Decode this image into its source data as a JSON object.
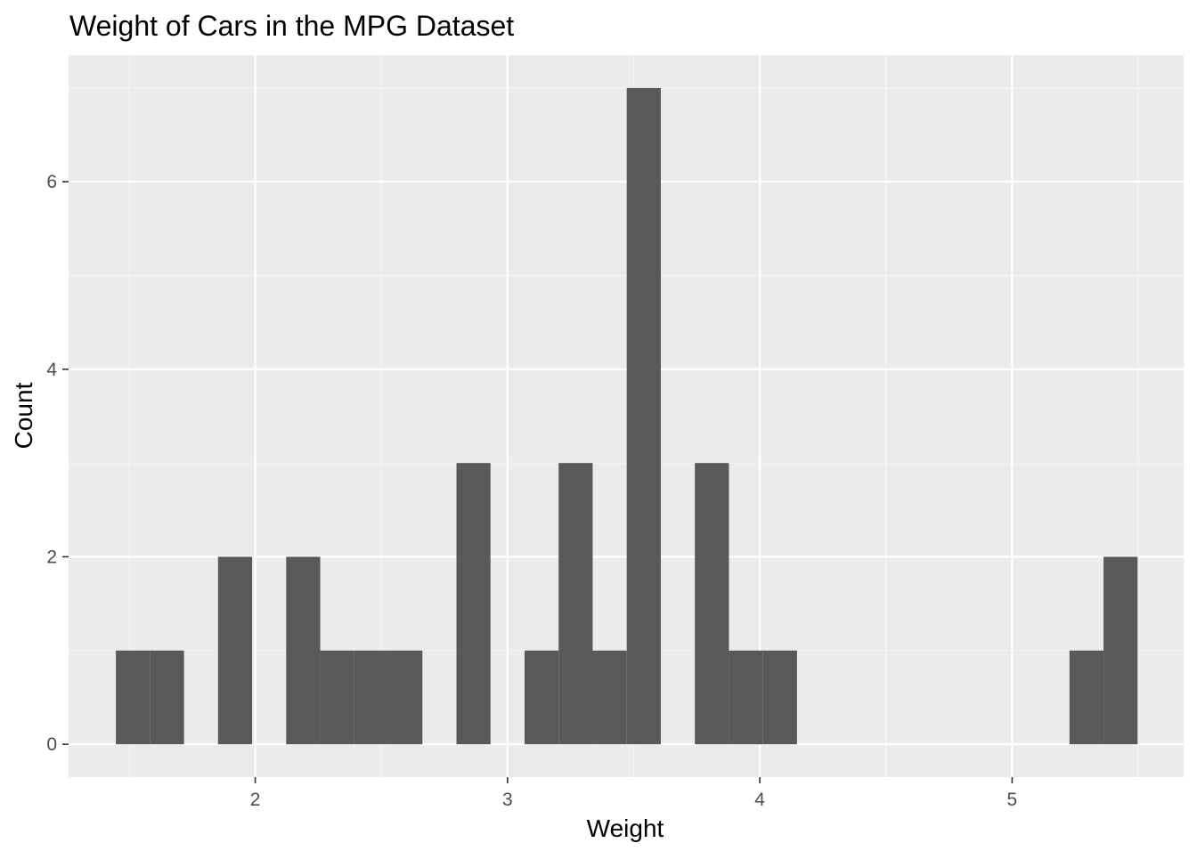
{
  "chart_data": {
    "type": "bar",
    "title": "Weight of Cars in the MPG Dataset",
    "xlabel": "Weight",
    "ylabel": "Count",
    "xlim": [
      1.26,
      5.68
    ],
    "ylim": [
      -0.35,
      7.35
    ],
    "x_ticks": [
      2,
      3,
      4,
      5
    ],
    "y_ticks": [
      0,
      2,
      4,
      6
    ],
    "bin_width": 0.135,
    "bins": [
      {
        "x0": 1.4475,
        "x1": 1.5825,
        "count": 1
      },
      {
        "x0": 1.5825,
        "x1": 1.7175,
        "count": 1
      },
      {
        "x0": 1.7175,
        "x1": 1.8525,
        "count": 0
      },
      {
        "x0": 1.8525,
        "x1": 1.9875,
        "count": 2
      },
      {
        "x0": 1.9875,
        "x1": 2.1225,
        "count": 0
      },
      {
        "x0": 2.1225,
        "x1": 2.2575,
        "count": 2
      },
      {
        "x0": 2.2575,
        "x1": 2.3925,
        "count": 1
      },
      {
        "x0": 2.3925,
        "x1": 2.5275,
        "count": 1
      },
      {
        "x0": 2.5275,
        "x1": 2.6625,
        "count": 1
      },
      {
        "x0": 2.6625,
        "x1": 2.7975,
        "count": 0
      },
      {
        "x0": 2.7975,
        "x1": 2.9325,
        "count": 3
      },
      {
        "x0": 2.9325,
        "x1": 3.0675,
        "count": 0
      },
      {
        "x0": 3.0675,
        "x1": 3.2025,
        "count": 1
      },
      {
        "x0": 3.2025,
        "x1": 3.3375,
        "count": 3
      },
      {
        "x0": 3.3375,
        "x1": 3.4725,
        "count": 1
      },
      {
        "x0": 3.4725,
        "x1": 3.6075,
        "count": 7
      },
      {
        "x0": 3.6075,
        "x1": 3.7425,
        "count": 0
      },
      {
        "x0": 3.7425,
        "x1": 3.8775,
        "count": 3
      },
      {
        "x0": 3.8775,
        "x1": 4.0125,
        "count": 1
      },
      {
        "x0": 4.0125,
        "x1": 4.1475,
        "count": 1
      },
      {
        "x0": 4.1475,
        "x1": 4.2825,
        "count": 0
      },
      {
        "x0": 4.2825,
        "x1": 4.4175,
        "count": 0
      },
      {
        "x0": 4.4175,
        "x1": 4.5525,
        "count": 0
      },
      {
        "x0": 4.5525,
        "x1": 4.6875,
        "count": 0
      },
      {
        "x0": 4.6875,
        "x1": 4.8225,
        "count": 0
      },
      {
        "x0": 4.8225,
        "x1": 4.9575,
        "count": 0
      },
      {
        "x0": 4.9575,
        "x1": 5.0925,
        "count": 0
      },
      {
        "x0": 5.0925,
        "x1": 5.2275,
        "count": 0
      },
      {
        "x0": 5.2275,
        "x1": 5.3625,
        "count": 1
      },
      {
        "x0": 5.3625,
        "x1": 5.4975,
        "count": 2
      }
    ],
    "grid": true,
    "legend": "none",
    "colors": {
      "panel_background": "#EBEBEB",
      "grid_major": "#FFFFFF",
      "grid_minor": "#F5F5F5",
      "bar_fill": "#595959",
      "tick_label": "#4D4D4D",
      "tick_mark": "#333333",
      "text": "#000000"
    }
  }
}
